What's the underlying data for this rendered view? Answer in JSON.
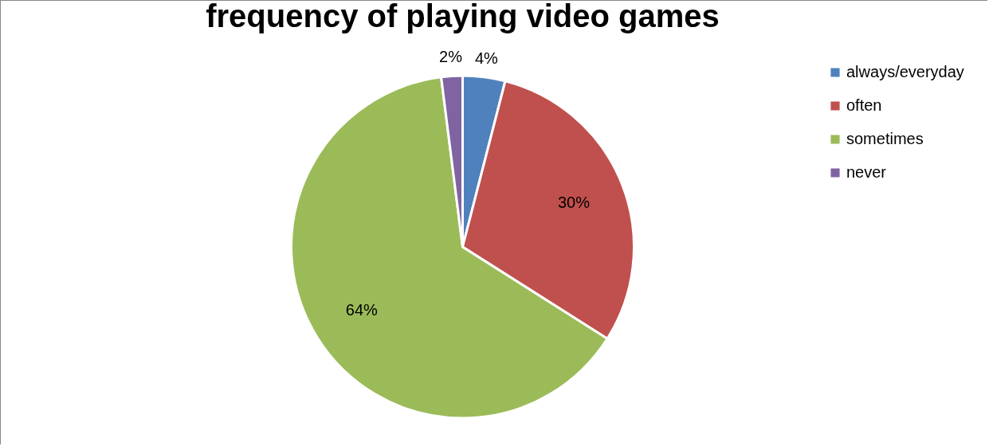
{
  "chart_data": {
    "type": "pie",
    "title": "frequency of playing video games",
    "categories": [
      "always/everyday",
      "often",
      "sometimes",
      "never"
    ],
    "values": [
      4,
      30,
      64,
      2
    ],
    "colors": [
      "#4f81bd",
      "#c0504d",
      "#9bbb59",
      "#8064a2"
    ],
    "value_labels": [
      "4%",
      "30%",
      "64%",
      "2%"
    ],
    "legend": "right"
  }
}
